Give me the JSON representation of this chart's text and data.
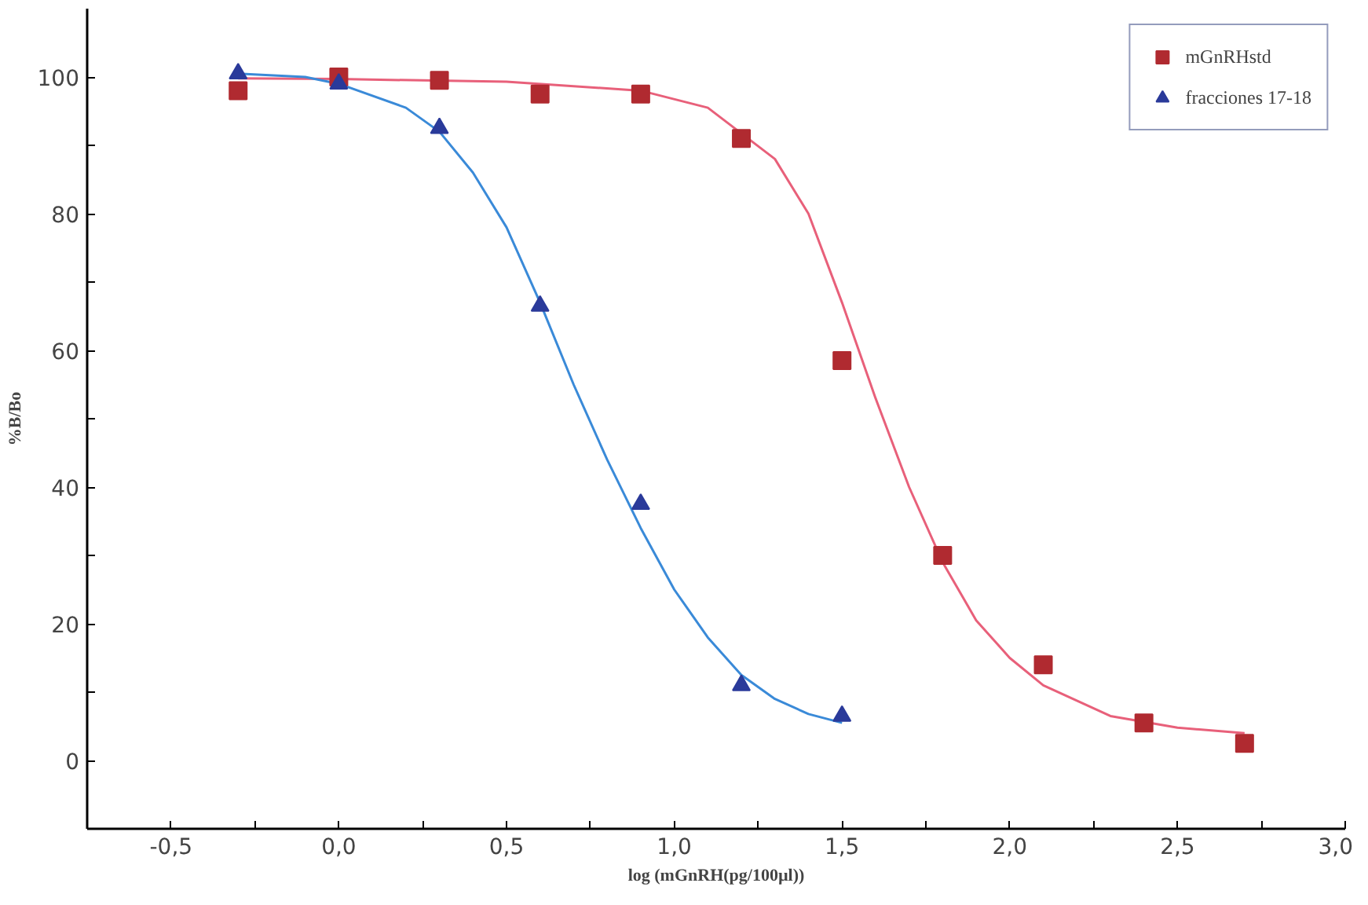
{
  "chart_data": {
    "type": "scatter",
    "xlabel": "log (mGnRH(pg/100µl))",
    "ylabel": "%B/Bo",
    "xlim": [
      -0.75,
      3.0
    ],
    "ylim": [
      -10,
      110
    ],
    "xticks": [
      {
        "value": -0.5,
        "label": "-0,5"
      },
      {
        "value": -0.25,
        "label": null
      },
      {
        "value": 0.0,
        "label": "0,0"
      },
      {
        "value": 0.25,
        "label": null
      },
      {
        "value": 0.5,
        "label": "0,5"
      },
      {
        "value": 0.75,
        "label": null
      },
      {
        "value": 1.0,
        "label": "1,0"
      },
      {
        "value": 1.25,
        "label": null
      },
      {
        "value": 1.5,
        "label": "1,5"
      },
      {
        "value": 1.75,
        "label": null
      },
      {
        "value": 2.0,
        "label": "2,0"
      },
      {
        "value": 2.25,
        "label": null
      },
      {
        "value": 2.5,
        "label": "2,5"
      },
      {
        "value": 2.75,
        "label": null
      },
      {
        "value": 3.0,
        "label": "3,0"
      }
    ],
    "yticks": [
      0,
      {
        "value": 10,
        "label": null
      },
      20,
      {
        "value": 30,
        "label": null
      },
      40,
      {
        "value": 50,
        "label": null
      },
      60,
      {
        "value": 70,
        "label": null
      },
      80,
      {
        "value": 90,
        "label": null
      },
      100
    ],
    "grid": false,
    "legend": "top right",
    "series": [
      {
        "type": "line",
        "color": "#e8607a",
        "x": [
          -0.3,
          0,
          0.5,
          0.9,
          1.1,
          1.3,
          1.4,
          1.5,
          1.6,
          1.7,
          1.8,
          1.9,
          2.0,
          2.1,
          2.3,
          2.5,
          2.7
        ],
        "values": [
          99.8,
          99.7,
          99.3,
          98,
          95.5,
          88,
          80,
          67,
          53,
          40,
          29,
          20.5,
          15,
          11,
          6.5,
          4.8,
          4
        ]
      },
      {
        "type": "line",
        "color": "#3a8ad8",
        "x": [
          -0.3,
          -0.1,
          0.0,
          0.2,
          0.3,
          0.4,
          0.5,
          0.6,
          0.7,
          0.8,
          0.9,
          1.0,
          1.1,
          1.2,
          1.3,
          1.4,
          1.5
        ],
        "values": [
          100.5,
          100,
          99,
          95.5,
          92,
          86,
          78,
          67,
          55,
          44,
          34,
          25,
          18,
          12.5,
          9,
          6.8,
          5.5
        ]
      },
      {
        "name": "mGnRHstd",
        "marker": "square",
        "color": "#b02a30",
        "x": [
          -0.3,
          0,
          0.3,
          0.6,
          0.9,
          1.2,
          1.5,
          1.8,
          2.1,
          2.4,
          2.7
        ],
        "values": [
          98,
          100,
          99.5,
          97.5,
          97.5,
          91,
          58.5,
          30,
          14,
          5.5,
          2.5
        ]
      },
      {
        "name": "fracciones 17-18",
        "marker": "triangle",
        "color": "#2a3a9a",
        "x": [
          -0.3,
          0,
          0.3,
          0.6,
          0.9,
          1.2,
          1.5
        ],
        "values": [
          100.5,
          99,
          92.5,
          66.5,
          37.5,
          11,
          6.5
        ]
      }
    ]
  }
}
